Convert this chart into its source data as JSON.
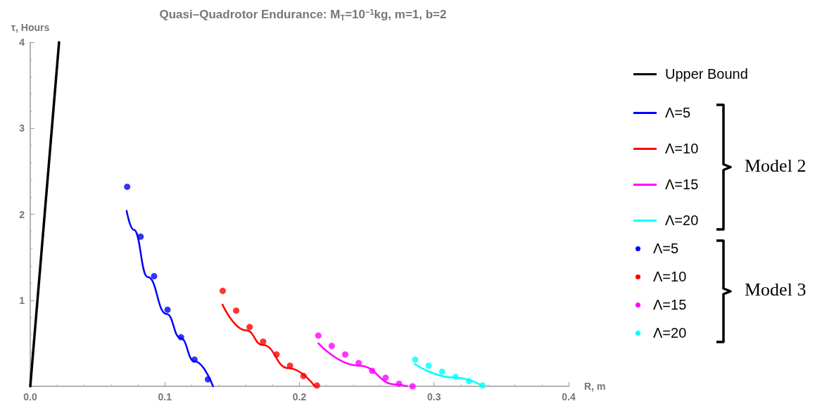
{
  "chart_data": {
    "type": "line",
    "title": "Quasi–Quadrotor Endurance: M$_{T}$=10$^{−1}$kg, m=1, b=2",
    "xlabel": "R, m",
    "ylabel": "τ, Hours",
    "xlim": [
      0,
      0.4
    ],
    "xticks": [
      {
        "value": 0,
        "label": "0.0"
      },
      0.1,
      0.2,
      0.3,
      0.4
    ],
    "ylim": [
      0,
      4
    ],
    "yticks": [
      {
        "value": 0,
        "label": null
      },
      1,
      2,
      3,
      4
    ],
    "grid": false,
    "legend": "right",
    "annotations": [
      "Model 2",
      "Model 3"
    ],
    "series": [
      {
        "name": "Upper Bound",
        "color": "#000000",
        "x": [
          0,
          0.0214
        ],
        "values": [
          0,
          4
        ]
      },
      {
        "name": "Λ=5",
        "color": "#0000ff",
        "x": [
          0.0716,
          0.0769,
          0.0873,
          0.1013,
          0.1117,
          0.122,
          0.1358
        ],
        "values": [
          2.04,
          1.82,
          1.27,
          0.84,
          0.56,
          0.29,
          0
        ]
      },
      {
        "name": "Λ=10",
        "color": "#ff0000",
        "x": [
          0.1428,
          0.1605,
          0.1727,
          0.1919,
          0.2114
        ],
        "values": [
          0.95,
          0.65,
          0.48,
          0.21,
          0
        ]
      },
      {
        "name": "Λ=15",
        "color": "#ff00ff",
        "x": [
          0.214,
          0.2442,
          0.272,
          0.28
        ],
        "values": [
          0.5,
          0.24,
          0.02,
          0
        ]
      },
      {
        "name": "Λ=20",
        "color": "#00ffff",
        "x": [
          0.2855,
          0.3157,
          0.3366
        ],
        "values": [
          0.26,
          0.1,
          0
        ]
      },
      {
        "name": "Λ=5",
        "type": "scatter",
        "color": "#0000ff",
        "x": [
          0.072,
          0.082,
          0.092,
          0.102,
          0.112,
          0.122,
          0.132
        ],
        "values": [
          2.32,
          1.74,
          1.28,
          0.89,
          0.57,
          0.31,
          0.08
        ]
      },
      {
        "name": "Λ=10",
        "type": "scatter",
        "color": "#ff0000",
        "x": [
          0.143,
          0.153,
          0.163,
          0.173,
          0.183,
          0.193,
          0.203,
          0.213
        ],
        "values": [
          1.11,
          0.88,
          0.69,
          0.52,
          0.37,
          0.24,
          0.12,
          0.01
        ]
      },
      {
        "name": "Λ=15",
        "type": "scatter",
        "color": "#ff00ff",
        "x": [
          0.214,
          0.224,
          0.234,
          0.244,
          0.254,
          0.264,
          0.274,
          0.284
        ],
        "values": [
          0.59,
          0.47,
          0.37,
          0.27,
          0.18,
          0.1,
          0.03,
          0
        ]
      },
      {
        "name": "Λ=20",
        "type": "scatter",
        "color": "#00ffff",
        "x": [
          0.286,
          0.296,
          0.306,
          0.316,
          0.326,
          0.336
        ],
        "values": [
          0.31,
          0.24,
          0.17,
          0.11,
          0.06,
          0.01
        ]
      }
    ]
  }
}
